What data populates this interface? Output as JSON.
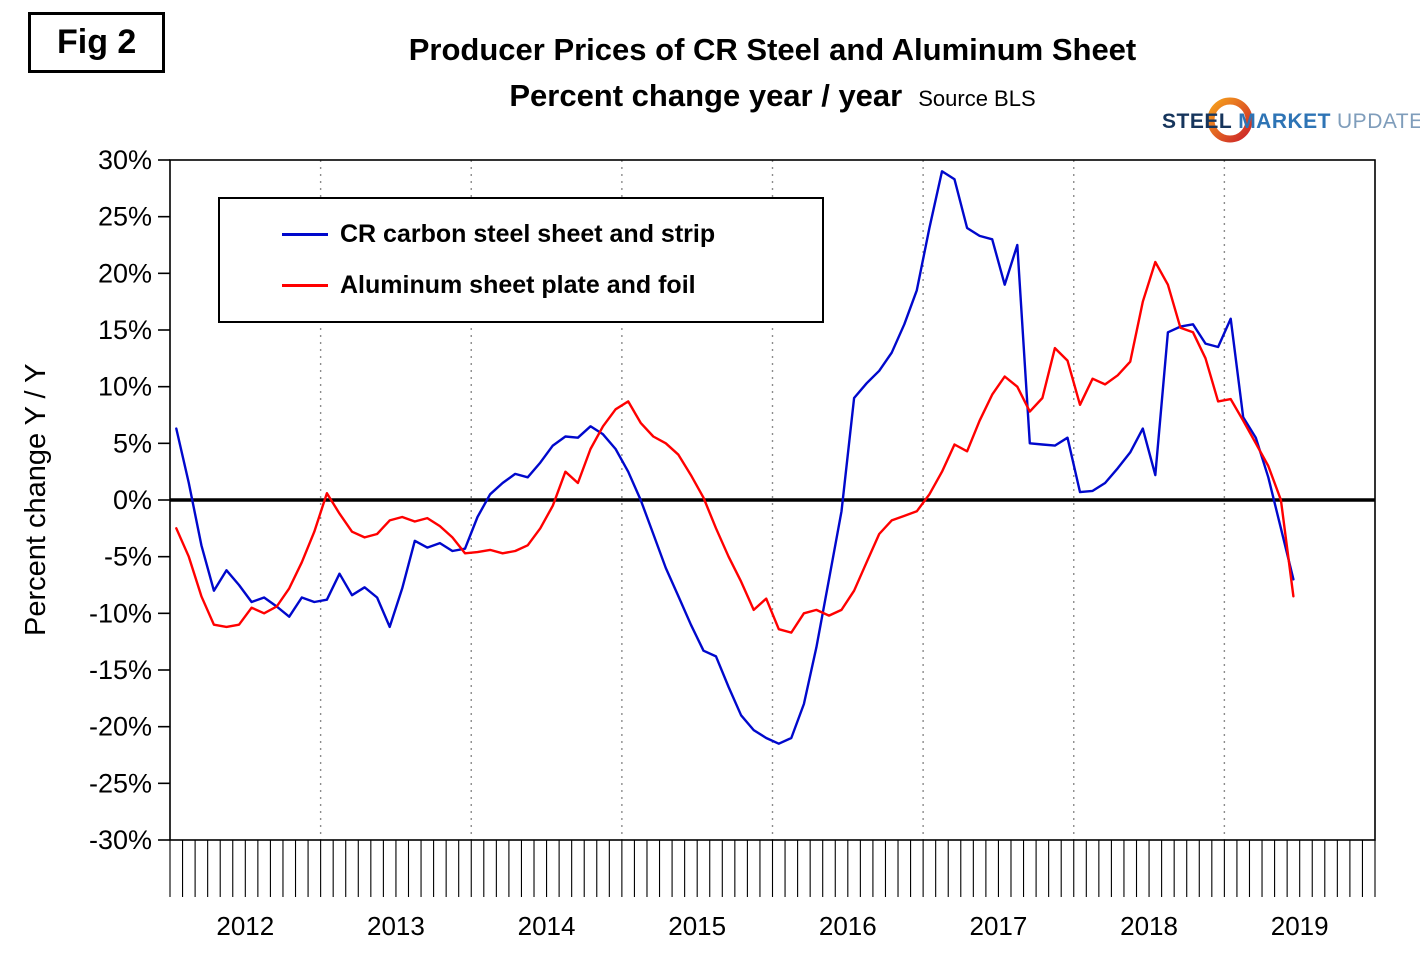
{
  "figure_label": "Fig 2",
  "header": {
    "title": "Producer Prices of CR Steel and Aluminum Sheet",
    "subtitle": "Percent change year / year",
    "source": "Source BLS"
  },
  "logo": {
    "word1": "STEEL",
    "word2": "MARKET",
    "word3": "UPDATE"
  },
  "chart_data": {
    "type": "line",
    "title": "Producer Prices of CR Steel and Aluminum Sheet",
    "subtitle": "Percent change year / year",
    "source": "Source BLS",
    "ylabel": "Percent change Y / Y",
    "ylim": [
      -30,
      30
    ],
    "ytick_step": 5,
    "ytick_suffix": "%",
    "grid": "vertical-dotted-at-year-boundaries",
    "zero_line": true,
    "legend_position": "top-left",
    "x_years": [
      2012,
      2013,
      2014,
      2015,
      2016,
      2017,
      2018,
      2019
    ],
    "x_axis_range": [
      "2012-01",
      "2019-12"
    ],
    "data_frequency": "monthly",
    "data_start": "2012-01",
    "series": [
      {
        "name": "CR carbon steel sheet and strip",
        "color": "#0008cc",
        "values": [
          6.3,
          1.5,
          -4.0,
          -8.0,
          -6.2,
          -7.5,
          -9.0,
          -8.6,
          -9.4,
          -10.3,
          -8.6,
          -9.0,
          -8.8,
          -6.5,
          -8.4,
          -7.7,
          -8.6,
          -11.2,
          -7.8,
          -3.6,
          -4.2,
          -3.8,
          -4.5,
          -4.3,
          -1.5,
          0.5,
          1.5,
          2.3,
          2.0,
          3.3,
          4.8,
          5.6,
          5.5,
          6.5,
          5.8,
          4.5,
          2.5,
          0.0,
          -3.0,
          -6.0,
          -8.5,
          -11.0,
          -13.3,
          -13.8,
          -16.5,
          -19.0,
          -20.3,
          -21.0,
          -21.5,
          -21.0,
          -18.0,
          -13.0,
          -7.0,
          -1.0,
          9.0,
          10.3,
          11.4,
          13.0,
          15.5,
          18.5,
          24.0,
          29.0,
          28.3,
          24.0,
          23.3,
          23.0,
          19.0,
          22.5,
          5.0,
          4.9,
          4.8,
          5.5,
          0.7,
          0.8,
          1.5,
          2.8,
          4.2,
          6.3,
          2.2,
          14.8,
          15.3,
          15.5,
          13.8,
          13.5,
          16.0,
          7.3,
          5.5,
          2.0,
          -2.5,
          -7.0
        ]
      },
      {
        "name": "Aluminum sheet plate and foil",
        "color": "#ff0000",
        "values": [
          -2.5,
          -5.0,
          -8.5,
          -11.0,
          -11.2,
          -11.0,
          -9.5,
          -10.0,
          -9.4,
          -7.8,
          -5.5,
          -2.8,
          0.6,
          -1.2,
          -2.8,
          -3.3,
          -3.0,
          -1.8,
          -1.5,
          -1.9,
          -1.6,
          -2.3,
          -3.3,
          -4.7,
          -4.6,
          -4.4,
          -4.7,
          -4.5,
          -4.0,
          -2.5,
          -0.5,
          2.5,
          1.5,
          4.5,
          6.5,
          8.0,
          8.7,
          6.8,
          5.6,
          5.0,
          4.0,
          2.2,
          0.2,
          -2.5,
          -5.0,
          -7.2,
          -9.7,
          -8.7,
          -11.4,
          -11.7,
          -10.0,
          -9.7,
          -10.2,
          -9.7,
          -8.0,
          -5.5,
          -3.0,
          -1.8,
          -1.4,
          -1.0,
          0.5,
          2.5,
          4.9,
          4.3,
          7.0,
          9.3,
          10.9,
          10.0,
          7.8,
          9.0,
          13.4,
          12.3,
          8.4,
          10.7,
          10.2,
          11.0,
          12.2,
          17.5,
          21.0,
          19.0,
          15.2,
          14.8,
          12.5,
          8.7,
          8.9,
          7.0,
          5.0,
          3.0,
          0.0,
          -8.5
        ]
      }
    ]
  }
}
